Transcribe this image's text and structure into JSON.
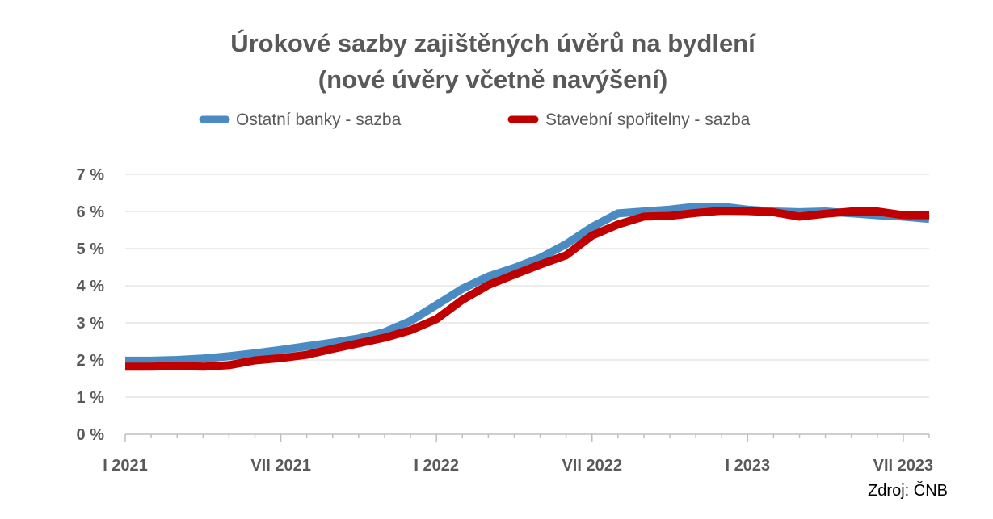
{
  "chart_data": {
    "type": "line",
    "title_lines": [
      "Úrokové sazby zajištěných úvěrů na bydlení",
      "(nové úvěry včetně navýšení)"
    ],
    "ylim": [
      0,
      7
    ],
    "y_ticks": [
      {
        "value": 0,
        "label": "0 %"
      },
      {
        "value": 1,
        "label": "1 %"
      },
      {
        "value": 2,
        "label": "2 %"
      },
      {
        "value": 3,
        "label": "3 %"
      },
      {
        "value": 4,
        "label": "4 %"
      },
      {
        "value": 5,
        "label": "5 %"
      },
      {
        "value": 6,
        "label": "6 %"
      },
      {
        "value": 7,
        "label": "7 %"
      }
    ],
    "x": [
      "2021-01",
      "2021-02",
      "2021-03",
      "2021-04",
      "2021-05",
      "2021-06",
      "2021-07",
      "2021-08",
      "2021-09",
      "2021-10",
      "2021-11",
      "2021-12",
      "2022-01",
      "2022-02",
      "2022-03",
      "2022-04",
      "2022-05",
      "2022-06",
      "2022-07",
      "2022-08",
      "2022-09",
      "2022-10",
      "2022-11",
      "2022-12",
      "2023-01",
      "2023-02",
      "2023-03",
      "2023-04",
      "2023-05",
      "2023-06",
      "2023-07",
      "2023-08"
    ],
    "x_tick_labels": [
      {
        "index": 0,
        "label": "I 2021"
      },
      {
        "index": 6,
        "label": "VII 2021"
      },
      {
        "index": 12,
        "label": "I 2022"
      },
      {
        "index": 18,
        "label": "VII 2022"
      },
      {
        "index": 24,
        "label": "I 2023"
      },
      {
        "index": 30,
        "label": "VII 2023"
      }
    ],
    "grid": true,
    "legend_position": "top",
    "series": [
      {
        "name": "Ostatní banky - sazba",
        "color": "#4A8BC3",
        "values": [
          1.98,
          1.98,
          2.0,
          2.04,
          2.1,
          2.18,
          2.27,
          2.37,
          2.47,
          2.58,
          2.75,
          3.05,
          3.48,
          3.92,
          4.25,
          4.48,
          4.75,
          5.12,
          5.58,
          5.95,
          6.0,
          6.05,
          6.13,
          6.13,
          6.05,
          6.0,
          5.98,
          6.0,
          5.95,
          5.9,
          5.86,
          5.8
        ]
      },
      {
        "name": "Stavební spořitelny - sazba",
        "color": "#C00000",
        "values": [
          1.82,
          1.82,
          1.84,
          1.82,
          1.86,
          1.99,
          2.05,
          2.14,
          2.3,
          2.45,
          2.6,
          2.8,
          3.1,
          3.62,
          4.02,
          4.3,
          4.57,
          4.82,
          5.35,
          5.65,
          5.86,
          5.88,
          5.96,
          6.02,
          6.01,
          5.98,
          5.86,
          5.94,
          6.0,
          6.0,
          5.9,
          5.9
        ]
      }
    ]
  },
  "source": "Zdroj: ČNB"
}
